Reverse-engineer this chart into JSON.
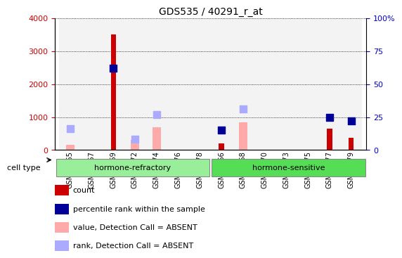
{
  "title": "GDS535 / 40291_r_at",
  "samples": [
    "GSM13065",
    "GSM13067",
    "GSM13069",
    "GSM13072",
    "GSM13074",
    "GSM13076",
    "GSM13078",
    "GSM13066",
    "GSM13068",
    "GSM13070",
    "GSM13073",
    "GSM13075",
    "GSM13077",
    "GSM13079"
  ],
  "group1_label": "hormone-refractory",
  "group2_label": "hormone-sensitive",
  "group1_count": 7,
  "group2_count": 7,
  "ylim_left": [
    0,
    4000
  ],
  "ylim_right": [
    0,
    100
  ],
  "yticks_left": [
    0,
    1000,
    2000,
    3000,
    4000
  ],
  "yticks_right": [
    0,
    25,
    50,
    75,
    100
  ],
  "count_values": [
    null,
    null,
    3500,
    null,
    null,
    null,
    null,
    200,
    null,
    null,
    null,
    null,
    650,
    380
  ],
  "rank_values": [
    null,
    null,
    62,
    null,
    null,
    null,
    null,
    15,
    null,
    null,
    null,
    null,
    25,
    22
  ],
  "absent_value_values": [
    150,
    null,
    null,
    300,
    700,
    null,
    null,
    null,
    850,
    null,
    null,
    null,
    null,
    null
  ],
  "absent_rank_values": [
    16,
    null,
    null,
    8,
    27,
    null,
    null,
    null,
    31,
    null,
    null,
    null,
    null,
    null
  ],
  "color_count": "#cc0000",
  "color_rank": "#000099",
  "color_absent_value": "#ffaaaa",
  "color_absent_rank": "#aaaaff",
  "color_group1_bg": "#99ee99",
  "color_group2_bg": "#55dd55",
  "bar_width": 0.4,
  "marker_size": 60,
  "left_ylabel_color": "#cc0000",
  "right_ylabel_color": "#0000cc",
  "bg_color": "#e8e8e8"
}
